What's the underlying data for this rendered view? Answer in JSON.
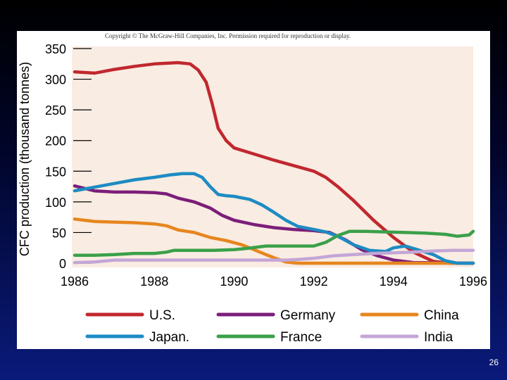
{
  "copyright": "Copyright © The McGraw-Hill Companies, Inc. Permission required for reproduction or display.",
  "slide_number": "26",
  "chart_data": {
    "type": "line",
    "title": "",
    "xlabel": "",
    "ylabel": "CFC production (thousand tonnes)",
    "xlim": [
      1986,
      1996
    ],
    "ylim": [
      0,
      350
    ],
    "x_ticks": [
      "1986",
      "1988",
      "1990",
      "1992",
      "1994",
      "1996"
    ],
    "y_ticks": [
      "0",
      "50",
      "100",
      "150",
      "200",
      "250",
      "300",
      "350"
    ],
    "legend_position": "bottom",
    "series": [
      {
        "name": "U.S.",
        "color": "#c0282e",
        "points": [
          [
            1986,
            312
          ],
          [
            1986.5,
            310
          ],
          [
            1987,
            316
          ],
          [
            1987.5,
            321
          ],
          [
            1988,
            325
          ],
          [
            1988.3,
            326
          ],
          [
            1988.6,
            327
          ],
          [
            1988.9,
            325
          ],
          [
            1989.1,
            315
          ],
          [
            1989.3,
            295
          ],
          [
            1989.45,
            260
          ],
          [
            1989.6,
            220
          ],
          [
            1989.8,
            200
          ],
          [
            1990,
            188
          ],
          [
            1990.5,
            178
          ],
          [
            1991,
            168
          ],
          [
            1991.5,
            159
          ],
          [
            1992,
            150
          ],
          [
            1992.3,
            140
          ],
          [
            1992.6,
            125
          ],
          [
            1993,
            102
          ],
          [
            1993.5,
            70
          ],
          [
            1994,
            42
          ],
          [
            1994.5,
            18
          ],
          [
            1995,
            3
          ],
          [
            1995.4,
            0
          ],
          [
            1996,
            0
          ]
        ]
      },
      {
        "name": "Germany",
        "color": "#7b1e7a",
        "points": [
          [
            1986,
            126
          ],
          [
            1986.5,
            118
          ],
          [
            1987,
            116
          ],
          [
            1987.5,
            116
          ],
          [
            1988,
            115
          ],
          [
            1988.3,
            113
          ],
          [
            1988.6,
            106
          ],
          [
            1989,
            100
          ],
          [
            1989.4,
            90
          ],
          [
            1989.7,
            78
          ],
          [
            1990,
            70
          ],
          [
            1990.5,
            63
          ],
          [
            1991,
            58
          ],
          [
            1991.5,
            55
          ],
          [
            1992,
            53
          ],
          [
            1992.4,
            50
          ],
          [
            1992.8,
            38
          ],
          [
            1993.2,
            22
          ],
          [
            1993.6,
            12
          ],
          [
            1994,
            5
          ],
          [
            1994.5,
            1
          ],
          [
            1996,
            0
          ]
        ]
      },
      {
        "name": "China",
        "color": "#e6861e",
        "points": [
          [
            1986,
            72
          ],
          [
            1986.5,
            68
          ],
          [
            1987,
            67
          ],
          [
            1987.5,
            66
          ],
          [
            1988,
            64
          ],
          [
            1988.3,
            61
          ],
          [
            1988.6,
            54
          ],
          [
            1989,
            50
          ],
          [
            1989.4,
            42
          ],
          [
            1989.8,
            37
          ],
          [
            1990.2,
            30
          ],
          [
            1990.5,
            22
          ],
          [
            1990.8,
            14
          ],
          [
            1991,
            9
          ],
          [
            1991.3,
            2
          ],
          [
            1991.6,
            0
          ],
          [
            1996,
            0
          ]
        ]
      },
      {
        "name": "Japan.",
        "color": "#1e8bc3",
        "points": [
          [
            1986,
            118
          ],
          [
            1986.5,
            124
          ],
          [
            1987,
            130
          ],
          [
            1987.5,
            136
          ],
          [
            1988,
            140
          ],
          [
            1988.4,
            144
          ],
          [
            1988.7,
            146
          ],
          [
            1989,
            146
          ],
          [
            1989.2,
            140
          ],
          [
            1989.4,
            125
          ],
          [
            1989.6,
            112
          ],
          [
            1989.8,
            110
          ],
          [
            1990,
            109
          ],
          [
            1990.4,
            104
          ],
          [
            1990.7,
            95
          ],
          [
            1991,
            83
          ],
          [
            1991.3,
            70
          ],
          [
            1991.6,
            60
          ],
          [
            1992,
            55
          ],
          [
            1992.3,
            51
          ],
          [
            1992.6,
            44
          ],
          [
            1993,
            30
          ],
          [
            1993.4,
            21
          ],
          [
            1993.8,
            19
          ],
          [
            1994,
            25
          ],
          [
            1994.3,
            28
          ],
          [
            1994.6,
            22
          ],
          [
            1995,
            14
          ],
          [
            1995.3,
            4
          ],
          [
            1995.6,
            0
          ],
          [
            1996,
            0
          ]
        ]
      },
      {
        "name": "France",
        "color": "#3aa04a",
        "points": [
          [
            1986,
            13
          ],
          [
            1986.5,
            13
          ],
          [
            1987,
            14
          ],
          [
            1987.5,
            16
          ],
          [
            1988,
            16
          ],
          [
            1988.3,
            18
          ],
          [
            1988.5,
            21
          ],
          [
            1989,
            21
          ],
          [
            1989.5,
            21
          ],
          [
            1990,
            22
          ],
          [
            1990.3,
            24
          ],
          [
            1990.8,
            28
          ],
          [
            1991.2,
            28
          ],
          [
            1991.6,
            28
          ],
          [
            1992,
            28
          ],
          [
            1992.3,
            34
          ],
          [
            1992.6,
            45
          ],
          [
            1992.9,
            52
          ],
          [
            1993.3,
            52
          ],
          [
            1993.8,
            51
          ],
          [
            1994.3,
            50
          ],
          [
            1994.8,
            49
          ],
          [
            1995.3,
            47
          ],
          [
            1995.6,
            44
          ],
          [
            1995.9,
            46
          ],
          [
            1996,
            52
          ]
        ]
      },
      {
        "name": "India",
        "color": "#c3a6d6",
        "points": [
          [
            1986,
            1
          ],
          [
            1986.5,
            2
          ],
          [
            1987,
            5
          ],
          [
            1987.5,
            5
          ],
          [
            1988,
            5
          ],
          [
            1989,
            5
          ],
          [
            1990,
            5
          ],
          [
            1991,
            5
          ],
          [
            1991.3,
            5
          ],
          [
            1991.6,
            6
          ],
          [
            1992,
            8
          ],
          [
            1992.5,
            12
          ],
          [
            1993,
            14
          ],
          [
            1993.5,
            16
          ],
          [
            1994,
            17
          ],
          [
            1994.5,
            18
          ],
          [
            1995,
            20
          ],
          [
            1995.5,
            21
          ],
          [
            1996,
            21
          ]
        ]
      }
    ]
  }
}
